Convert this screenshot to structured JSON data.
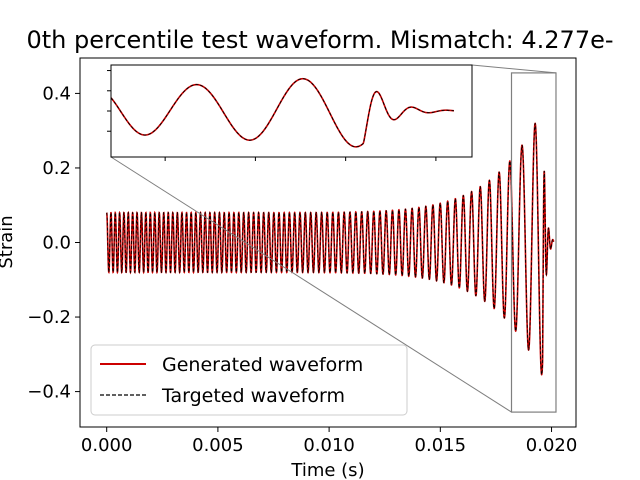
{
  "chart_data": {
    "type": "line",
    "title": "0th percentile test waveform. Mismatch: 4.277e-",
    "xlabel": "Time (s)",
    "ylabel": "Strain",
    "xlim": [
      -0.0012,
      0.0211
    ],
    "ylim": [
      -0.495,
      0.495
    ],
    "xticks": [
      0.0,
      0.005,
      0.01,
      0.015,
      0.02
    ],
    "xtick_labels": [
      "0.000",
      "0.005",
      "0.010",
      "0.015",
      "0.020"
    ],
    "yticks": [
      0.4,
      0.2,
      0.0,
      -0.2,
      -0.4
    ],
    "ytick_labels": [
      "0.4",
      "0.2",
      "0.0",
      "−0.2",
      "−0.4"
    ],
    "grid": false,
    "legend_position": "lower-left",
    "series": [
      {
        "name": "Generated waveform",
        "color": "#cc0000",
        "style": "solid"
      },
      {
        "name": "Targeted waveform",
        "color": "#000000",
        "style": "dashed"
      }
    ],
    "waveform": {
      "t_start": 0.0,
      "t_merger": 0.0196,
      "t_end": 0.0201,
      "initial_amplitude": 0.08,
      "peak_amplitude": 0.36,
      "initial_frequency_hz": 1700,
      "merger_frequency_hz": 5200
    },
    "inset": {
      "xlim": [
        0.0182,
        0.0202
      ],
      "ylim": [
        -0.455,
        0.455
      ]
    }
  }
}
